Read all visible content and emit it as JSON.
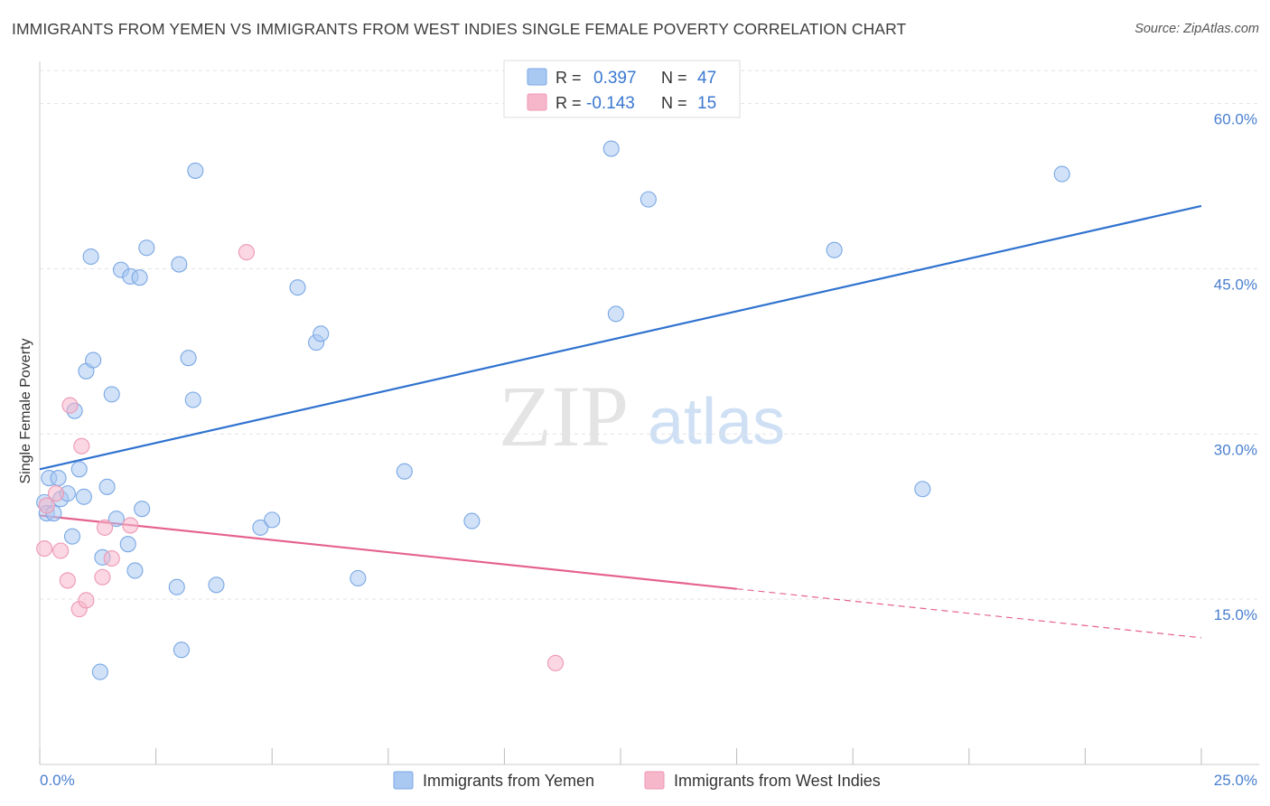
{
  "title": "IMMIGRANTS FROM YEMEN VS IMMIGRANTS FROM WEST INDIES SINGLE FEMALE POVERTY CORRELATION CHART",
  "source": "Source: ZipAtlas.com",
  "watermark": {
    "zip": "ZIP",
    "atlas": "atlas"
  },
  "legend_stats": [
    {
      "r_label": "R =",
      "r_value": "0.397",
      "n_label": "N =",
      "n_value": "47",
      "color": "#a9c8f2"
    },
    {
      "r_label": "R =",
      "r_value": "-0.143",
      "n_label": "N =",
      "n_value": "15",
      "color": "#f6b7cb"
    }
  ],
  "chart_data": {
    "type": "scatter",
    "title": "IMMIGRANTS FROM YEMEN VS IMMIGRANTS FROM WEST INDIES SINGLE FEMALE POVERTY CORRELATION CHART",
    "xlabel": "",
    "ylabel": "Single Female Poverty",
    "xlim": [
      0,
      25
    ],
    "ylim": [
      0,
      63
    ],
    "x_tick_labels": [
      "0.0%",
      "25.0%"
    ],
    "y_ticks": [
      15,
      30,
      45,
      60
    ],
    "y_tick_labels": [
      "15.0%",
      "30.0%",
      "45.0%",
      "60.0%"
    ],
    "grid": true,
    "legend_position": "bottom",
    "series": [
      {
        "name": "Immigrants from Yemen",
        "color": "#a9c8f2",
        "stroke": "#7aa8e4",
        "line_color": "#2f72cf",
        "trend": {
          "x": [
            0,
            25
          ],
          "y": [
            26.8,
            50.7
          ],
          "dashed_from": null
        },
        "points": [
          [
            0.1,
            23.8
          ],
          [
            0.15,
            22.8
          ],
          [
            0.2,
            26.0
          ],
          [
            0.3,
            22.8
          ],
          [
            0.4,
            26.0
          ],
          [
            0.45,
            24.1
          ],
          [
            0.6,
            24.6
          ],
          [
            0.7,
            20.7
          ],
          [
            0.75,
            32.1
          ],
          [
            0.85,
            26.8
          ],
          [
            0.95,
            24.3
          ],
          [
            1.0,
            35.7
          ],
          [
            1.1,
            46.1
          ],
          [
            1.15,
            36.7
          ],
          [
            1.3,
            8.4
          ],
          [
            1.35,
            18.8
          ],
          [
            1.45,
            25.2
          ],
          [
            1.55,
            33.6
          ],
          [
            1.65,
            22.3
          ],
          [
            1.75,
            44.9
          ],
          [
            1.9,
            20.0
          ],
          [
            1.95,
            44.3
          ],
          [
            2.05,
            17.6
          ],
          [
            2.15,
            44.2
          ],
          [
            2.2,
            23.2
          ],
          [
            2.3,
            46.9
          ],
          [
            2.95,
            16.1
          ],
          [
            3.0,
            45.4
          ],
          [
            3.05,
            10.4
          ],
          [
            3.2,
            36.9
          ],
          [
            3.3,
            33.1
          ],
          [
            3.35,
            53.9
          ],
          [
            3.8,
            16.3
          ],
          [
            4.75,
            21.5
          ],
          [
            5.0,
            22.2
          ],
          [
            5.55,
            43.3
          ],
          [
            5.95,
            38.3
          ],
          [
            6.05,
            39.1
          ],
          [
            6.85,
            16.9
          ],
          [
            7.85,
            26.6
          ],
          [
            9.3,
            22.1
          ],
          [
            12.3,
            55.9
          ],
          [
            12.4,
            40.9
          ],
          [
            13.1,
            51.3
          ],
          [
            17.1,
            46.7
          ],
          [
            19.0,
            25.0
          ],
          [
            22.0,
            53.6
          ]
        ]
      },
      {
        "name": "Immigrants from West Indies",
        "color": "#f6b7cb",
        "stroke": "#ee97b3",
        "line_color": "#e5628f",
        "trend": {
          "x": [
            0,
            25
          ],
          "y": [
            22.6,
            11.5
          ],
          "dashed_from": 15
        },
        "points": [
          [
            0.1,
            19.6
          ],
          [
            0.35,
            24.6
          ],
          [
            0.45,
            19.4
          ],
          [
            0.6,
            16.7
          ],
          [
            0.65,
            32.6
          ],
          [
            0.85,
            14.1
          ],
          [
            0.9,
            28.9
          ],
          [
            1.0,
            14.9
          ],
          [
            1.35,
            17.0
          ],
          [
            1.4,
            21.5
          ],
          [
            1.55,
            18.7
          ],
          [
            1.95,
            21.7
          ],
          [
            4.45,
            46.5
          ],
          [
            11.1,
            9.2
          ],
          [
            0.15,
            23.5
          ]
        ]
      }
    ]
  }
}
